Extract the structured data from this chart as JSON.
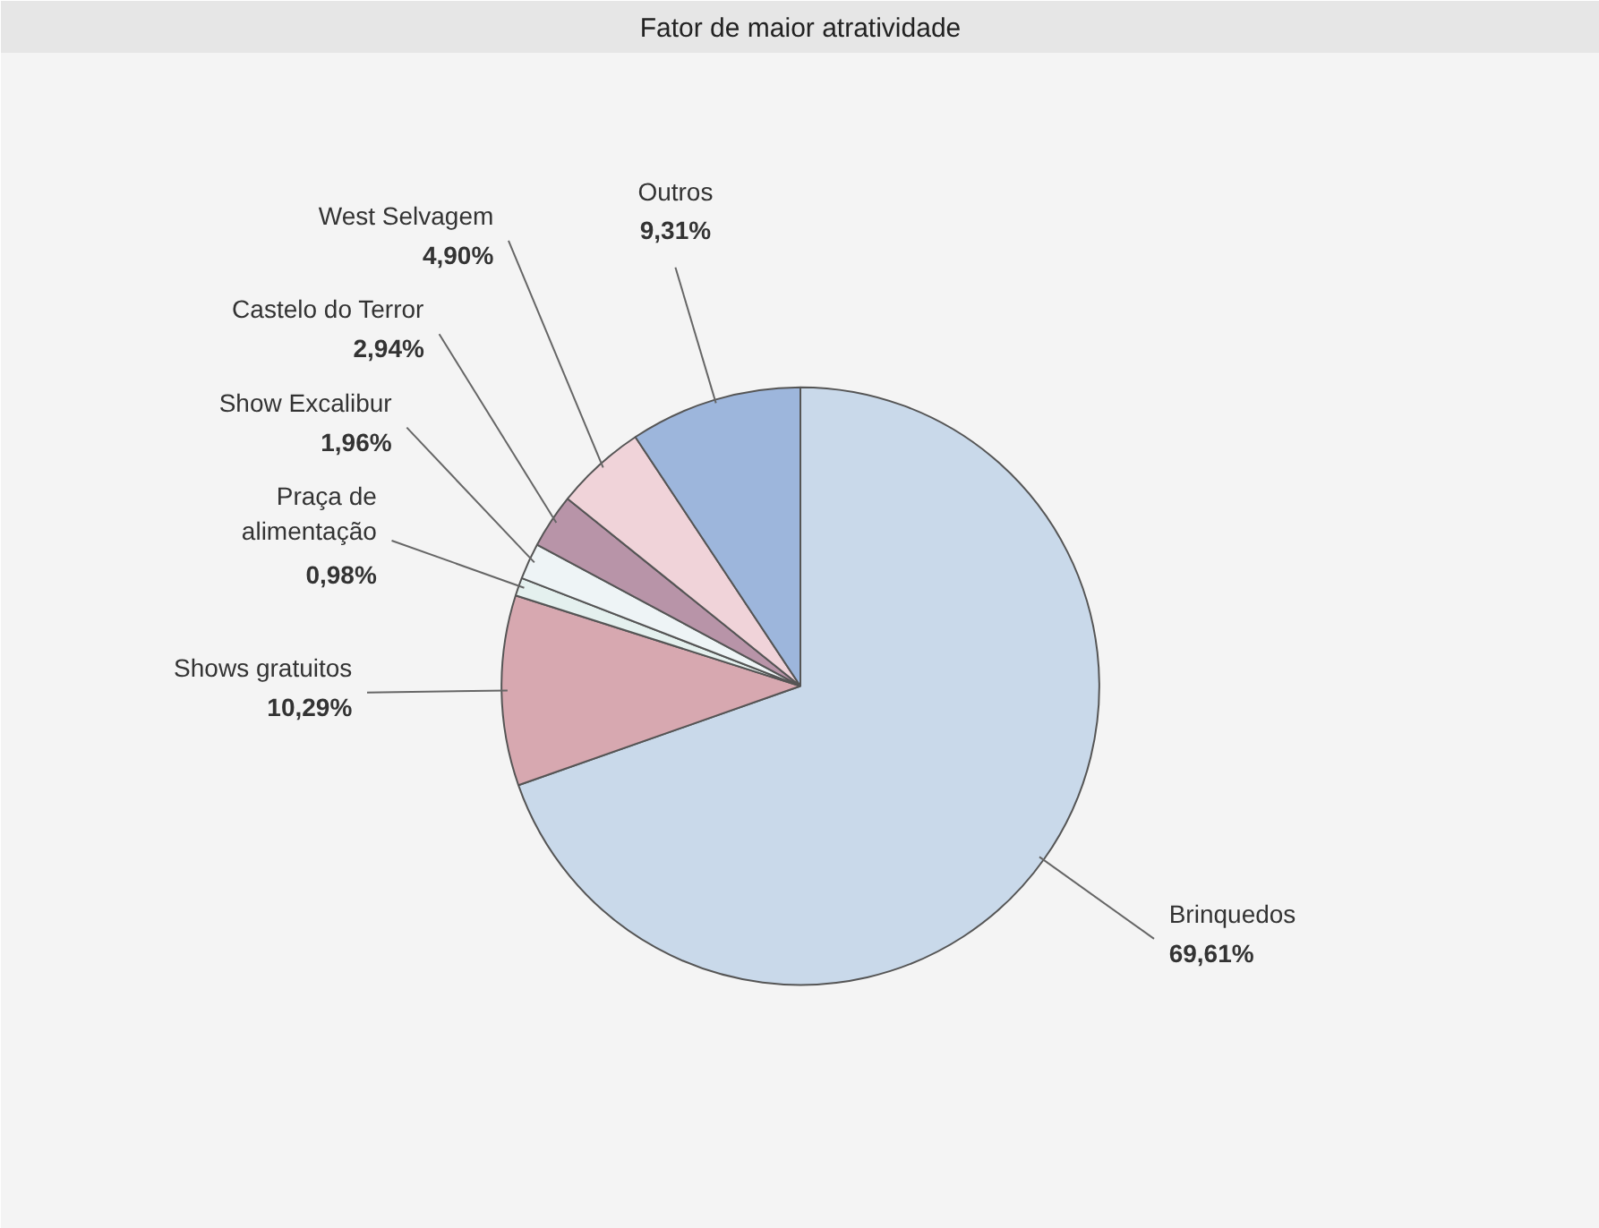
{
  "chart_data": {
    "type": "pie",
    "title": "Fator de maior atratividade",
    "categories": [
      "Brinquedos",
      "Shows gratuitos",
      "Praça de\nalimentação",
      "Show Excalibur",
      "Castelo do Terror",
      "West Selvagem",
      "Outros"
    ],
    "values": [
      69.61,
      10.29,
      0.98,
      1.96,
      2.94,
      4.9,
      9.31
    ],
    "value_labels": [
      "69,61%",
      "10,29%",
      "0,98%",
      "1,96%",
      "2,94%",
      "4,90%",
      "9,31%"
    ],
    "colors": [
      "#c9d9ea",
      "#d7a8b0",
      "#e4f0ee",
      "#eef4f6",
      "#b894a8",
      "#f0d3d9",
      "#9db6dc"
    ]
  }
}
